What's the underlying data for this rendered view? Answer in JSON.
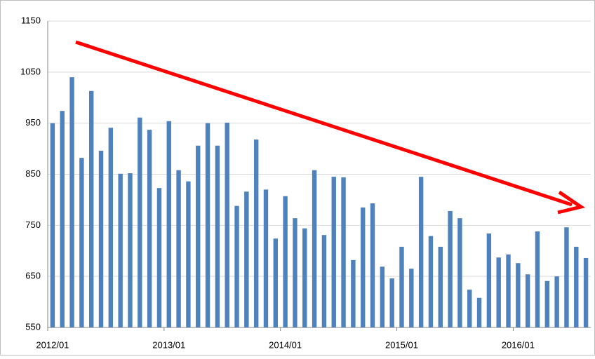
{
  "chart_data": {
    "type": "bar",
    "categories": [
      "2012/01",
      null,
      null,
      null,
      null,
      null,
      null,
      null,
      null,
      null,
      null,
      null,
      "2013/01",
      null,
      null,
      null,
      null,
      null,
      null,
      null,
      null,
      null,
      null,
      null,
      "2014/01",
      null,
      null,
      null,
      null,
      null,
      null,
      null,
      null,
      null,
      null,
      null,
      "2015/01",
      null,
      null,
      null,
      null,
      null,
      null,
      null,
      null,
      null,
      null,
      null,
      "2016/01",
      null,
      null,
      null,
      null,
      null,
      null,
      null
    ],
    "values": [
      950,
      974,
      1040,
      882,
      1013,
      896,
      941,
      851,
      852,
      961,
      937,
      823,
      954,
      858,
      836,
      906,
      950,
      906,
      951,
      788,
      816,
      918,
      820,
      724,
      807,
      764,
      744,
      858,
      731,
      845,
      844,
      682,
      785,
      793,
      669,
      646,
      708,
      665,
      845,
      729,
      708,
      778,
      764,
      624,
      608,
      734,
      687,
      693,
      676,
      654,
      738,
      641,
      650,
      746,
      708,
      686
    ],
    "color": "#4f81bd",
    "ylim": [
      550,
      1150
    ],
    "yticks": [
      550,
      650,
      750,
      850,
      950,
      1050,
      1150
    ],
    "grid": true
  }
}
